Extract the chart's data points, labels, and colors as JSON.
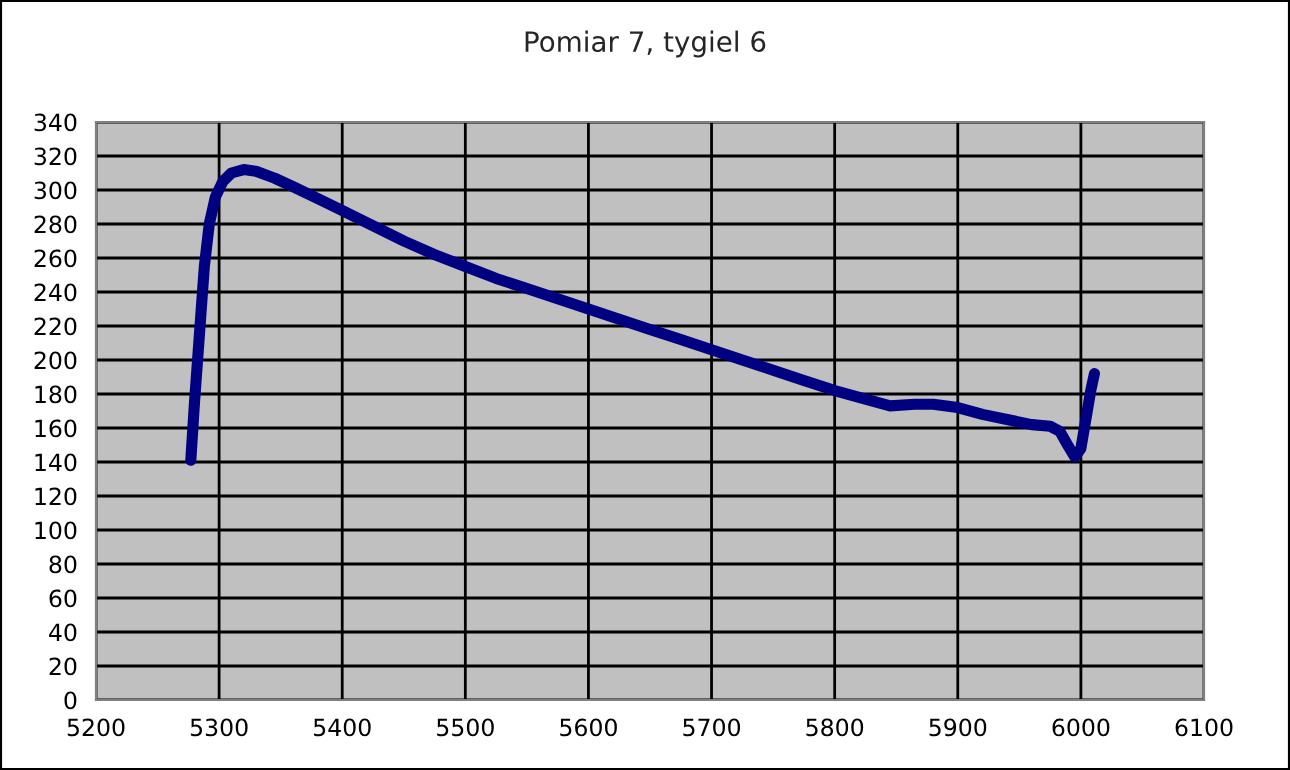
{
  "chart_data": {
    "type": "line",
    "title": "Pomiar 7, tygiel 6",
    "xlim": [
      5200,
      6100
    ],
    "xticks": [
      5200,
      5300,
      5400,
      5500,
      5600,
      5700,
      5800,
      5900,
      6000,
      6100
    ],
    "ylim": [
      0,
      340
    ],
    "yticks": [
      0,
      20,
      40,
      60,
      80,
      100,
      120,
      140,
      160,
      180,
      200,
      220,
      240,
      260,
      280,
      300,
      320,
      340
    ],
    "grid": true,
    "legend": false,
    "marker": "none",
    "line_style": "solid",
    "series": [
      {
        "color": "#000080",
        "x": [
          5277,
          5280,
          5284,
          5288,
          5292,
          5297,
          5303,
          5310,
          5320,
          5330,
          5345,
          5360,
          5380,
          5400,
          5425,
          5450,
          5475,
          5500,
          5525,
          5550,
          5575,
          5600,
          5625,
          5650,
          5675,
          5700,
          5725,
          5750,
          5775,
          5800,
          5825,
          5845,
          5865,
          5880,
          5900,
          5920,
          5940,
          5960,
          5975,
          5983,
          5990,
          5995,
          6000,
          6004,
          6008,
          6011
        ],
        "values": [
          141,
          175,
          215,
          255,
          280,
          296,
          305,
          310,
          312,
          311,
          307,
          302,
          295,
          288,
          279,
          270,
          262,
          255,
          248,
          242,
          236,
          230,
          224,
          218,
          212,
          206,
          200,
          194,
          188,
          182,
          177,
          173,
          174,
          174,
          172,
          168,
          165,
          162,
          161,
          158,
          149,
          143,
          148,
          165,
          182,
          192
        ]
      }
    ]
  }
}
